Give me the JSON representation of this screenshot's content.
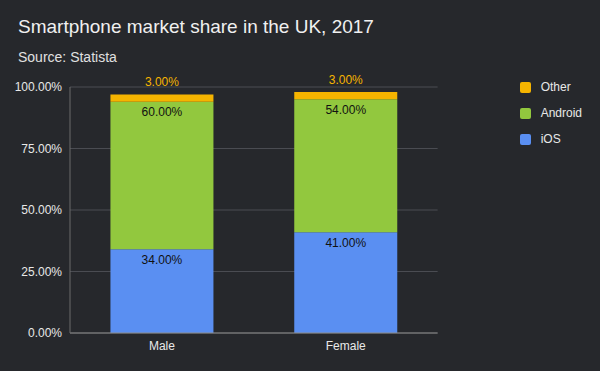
{
  "chart_data": {
    "type": "bar",
    "title": "Smartphone market share in the UK, 2017",
    "subtitle": "Source: Statista",
    "categories": [
      "Male",
      "Female"
    ],
    "series": [
      {
        "name": "iOS",
        "color": "#5a8ff2",
        "values": [
          34,
          41
        ],
        "value_labels": [
          "34.00%",
          "41.00%"
        ]
      },
      {
        "name": "Android",
        "color": "#92c83e",
        "values": [
          60,
          54
        ],
        "value_labels": [
          "60.00%",
          "54.00%"
        ]
      },
      {
        "name": "Other",
        "color": "#f5b400",
        "values": [
          3,
          3
        ],
        "value_labels": [
          "3.00%",
          "3.00%"
        ]
      }
    ],
    "stacked": true,
    "ylim": [
      0,
      100
    ],
    "yticks": [
      {
        "value": 0,
        "label": "0.00%"
      },
      {
        "value": 25,
        "label": "25.00%"
      },
      {
        "value": 50,
        "label": "50.00%"
      },
      {
        "value": 75,
        "label": "75.00%"
      },
      {
        "value": 100,
        "label": "100.00%"
      }
    ],
    "grid": true,
    "legend": "right",
    "data_labels": true
  }
}
